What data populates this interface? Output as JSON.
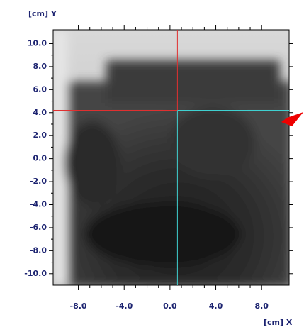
{
  "chart_data": {
    "type": "image",
    "x_label": "[cm] X",
    "y_label": "[cm] Y",
    "xlim": [
      -10.2,
      10.4
    ],
    "ylim": [
      -11.0,
      11.2
    ],
    "xticks": [
      {
        "value": -8,
        "label": "-8.0"
      },
      {
        "value": -4,
        "label": "-4.0"
      },
      {
        "value": 0,
        "label": "0.0"
      },
      {
        "value": 4,
        "label": "4.0"
      },
      {
        "value": 8,
        "label": "8.0"
      }
    ],
    "yticks": [
      {
        "value": 10,
        "label": "10.0"
      },
      {
        "value": 8,
        "label": "8.0"
      },
      {
        "value": 6,
        "label": "6.0"
      },
      {
        "value": 4,
        "label": "4.0"
      },
      {
        "value": 2,
        "label": "2.0"
      },
      {
        "value": 0,
        "label": "0.0"
      },
      {
        "value": -2,
        "label": "-2.0"
      },
      {
        "value": -4,
        "label": "-4.0"
      },
      {
        "value": -6,
        "label": "-6.0"
      },
      {
        "value": -8,
        "label": "-8.0"
      },
      {
        "value": -10,
        "label": "-10.0"
      }
    ],
    "crosshair": {
      "x": 0.65,
      "y": 4.2
    }
  }
}
